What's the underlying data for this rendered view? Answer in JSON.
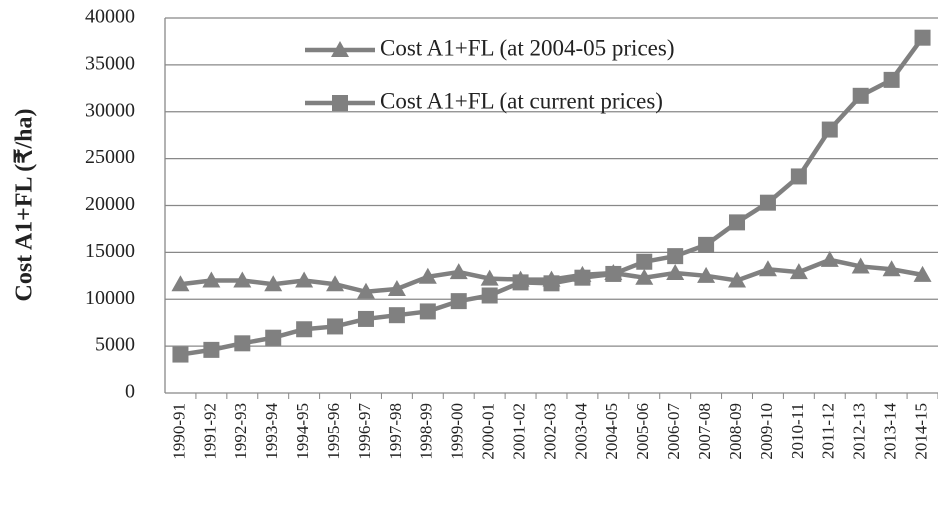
{
  "chart_data": {
    "type": "line",
    "y_label": "Cost A1+FL (₹/ha)",
    "categories": [
      "1990-91",
      "1991-92",
      "1992-93",
      "1993-94",
      "1994-95",
      "1995-96",
      "1996-97",
      "1997-98",
      "1998-99",
      "1999-00",
      "2000-01",
      "2001-02",
      "2002-03",
      "2003-04",
      "2004-05",
      "2005-06",
      "2006-07",
      "2007-08",
      "2008-09",
      "2009-10",
      "2010-11",
      "2011-12",
      "2012-13",
      "2013-14",
      "2014-15"
    ],
    "series": [
      {
        "name": "Cost A1+FL (at 2004-05 prices)",
        "color": "#808080",
        "marker": "triangle",
        "values": [
          11600,
          12000,
          12000,
          11600,
          12000,
          11600,
          10800,
          11100,
          12400,
          12900,
          12200,
          12100,
          12100,
          12600,
          12800,
          12300,
          12800,
          12500,
          12000,
          13200,
          12900,
          14200,
          13500,
          13200,
          12600
        ]
      },
      {
        "name": "Cost A1+FL (at current prices)",
        "color": "#808080",
        "marker": "square",
        "values": [
          4100,
          4600,
          5300,
          5900,
          6800,
          7100,
          7900,
          8300,
          8700,
          9800,
          10400,
          11800,
          11700,
          12300,
          12700,
          14000,
          14600,
          15800,
          18200,
          20300,
          23100,
          28100,
          31700,
          33400,
          37900
        ]
      }
    ],
    "ylim": [
      0,
      40000
    ],
    "yticks": [
      0,
      5000,
      10000,
      15000,
      20000,
      25000,
      30000,
      35000,
      40000
    ],
    "grid": true
  }
}
